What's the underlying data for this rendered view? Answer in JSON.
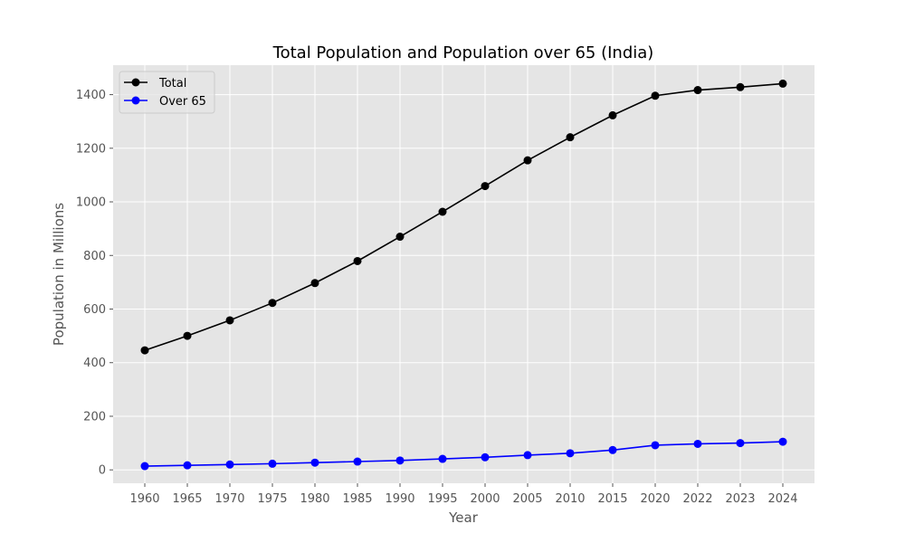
{
  "chart_data": {
    "type": "line",
    "title": "Total Population and Population over 65 (India)",
    "xlabel": "Year",
    "ylabel": "Population in Millions",
    "categories": [
      "1960",
      "1965",
      "1970",
      "1975",
      "1980",
      "1985",
      "1990",
      "1995",
      "2000",
      "2005",
      "2010",
      "2015",
      "2020",
      "2022",
      "2023",
      "2024"
    ],
    "ylim": [
      -50,
      1510
    ],
    "yticks": [
      0,
      200,
      400,
      600,
      800,
      1000,
      1200,
      1400
    ],
    "grid": true,
    "legend_position": "top-left",
    "series": [
      {
        "name": "Total",
        "color": "#000000",
        "values": [
          446,
          500,
          558,
          623,
          697,
          779,
          870,
          963,
          1059,
          1155,
          1241,
          1323,
          1396,
          1417,
          1428,
          1441
        ]
      },
      {
        "name": "Over 65",
        "color": "#0000ff",
        "values": [
          14,
          17,
          20,
          23,
          27,
          31,
          35,
          41,
          47,
          55,
          62,
          74,
          92,
          97,
          100,
          105
        ]
      }
    ]
  }
}
